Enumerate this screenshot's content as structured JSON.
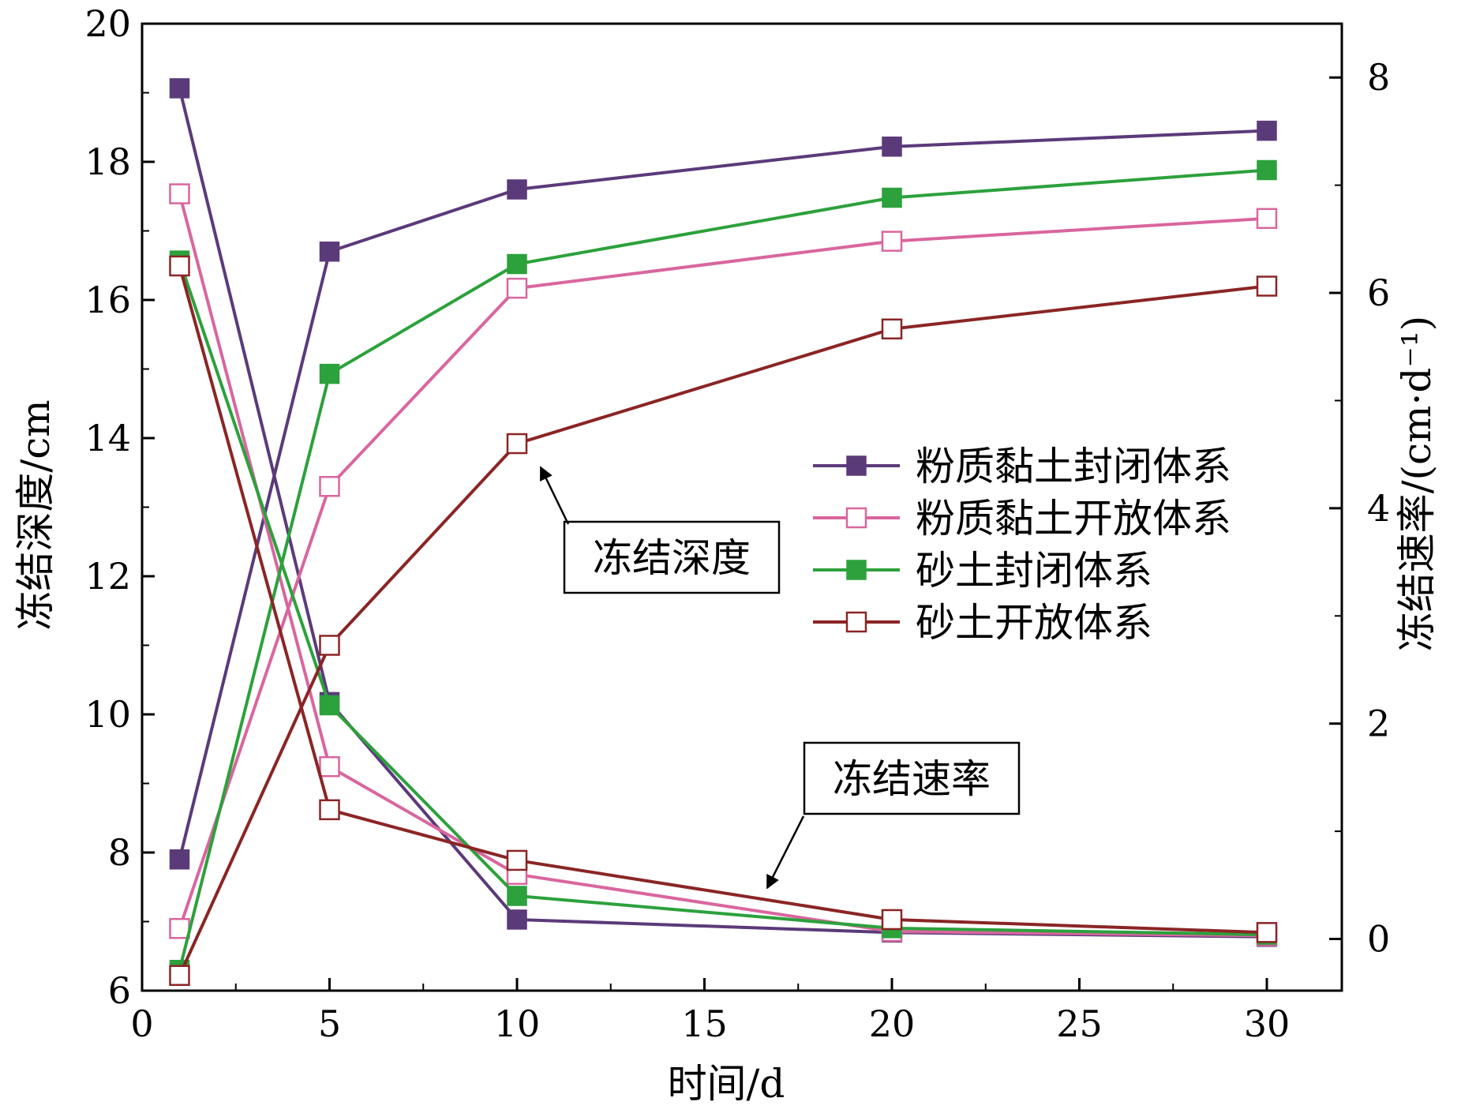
{
  "chart_data": {
    "type": "line",
    "x": [
      1,
      5,
      10,
      20,
      30
    ],
    "xlabel": "时间/d",
    "xlim": [
      0,
      32
    ],
    "xticks": [
      0,
      5,
      10,
      15,
      20,
      25,
      30
    ],
    "y_left": {
      "label": "冻结深度/cm",
      "lim": [
        6,
        20
      ],
      "ticks": [
        6,
        8,
        10,
        12,
        14,
        16,
        18,
        20
      ]
    },
    "y_right": {
      "label": "冻结速率/(cm·d⁻¹)",
      "lim": [
        -0.48,
        8.5
      ],
      "ticks": [
        0,
        2,
        4,
        6,
        8
      ]
    },
    "series": [
      {
        "name": "粉质黏土封闭体系",
        "color": "#5b3a7a",
        "marker": "filled-square",
        "depth": [
          7.9,
          16.7,
          17.6,
          18.22,
          18.45
        ],
        "rate": [
          7.9,
          2.2,
          0.18,
          0.06,
          0.02
        ]
      },
      {
        "name": "粉质黏土开放体系",
        "color": "#d9669e",
        "marker": "open-square",
        "depth": [
          6.9,
          13.3,
          16.17,
          16.85,
          17.18
        ],
        "rate": [
          6.92,
          1.6,
          0.6,
          0.07,
          0.03
        ]
      },
      {
        "name": "砂土封闭体系",
        "color": "#2ca13c",
        "marker": "filled-square",
        "depth": [
          6.3,
          14.93,
          16.52,
          17.48,
          17.88
        ],
        "rate": [
          6.3,
          2.17,
          0.4,
          0.1,
          0.04
        ]
      },
      {
        "name": "砂土开放体系",
        "color": "#8b2525",
        "marker": "open-square",
        "depth": [
          6.22,
          11.0,
          13.92,
          15.58,
          16.2
        ],
        "rate": [
          6.25,
          1.2,
          0.73,
          0.18,
          0.06
        ]
      }
    ],
    "annotations": [
      {
        "text": "冻结深度",
        "points_to": {
          "series": 3,
          "measure": "depth",
          "x": 10
        }
      },
      {
        "text": "冻结速率",
        "points_to": {
          "series": 3,
          "measure": "rate",
          "x": 20
        }
      }
    ],
    "legend_position": "center-right",
    "grid": false
  }
}
